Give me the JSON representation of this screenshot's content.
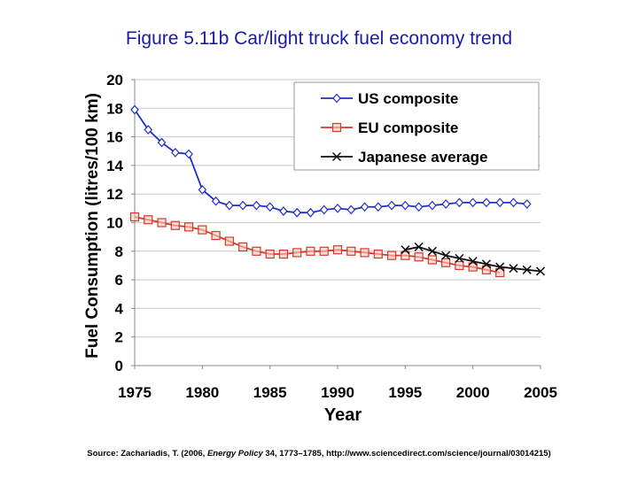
{
  "title": "Figure 5.11b Car/light truck fuel economy trend",
  "source": {
    "pre": "Source: Zachariadis, T. (2006, ",
    "journal": "Energy Policy",
    "post": " 34, 1773–1785, http://www.sciencedirect.com/science/journal/03014215)"
  },
  "colors": {
    "us": "#1f2fc8",
    "eu": "#d43a2a",
    "jp": "#111111",
    "grid": "#c8c8c8"
  },
  "chart_data": {
    "type": "line",
    "xlabel": "Year",
    "ylabel": "Fuel Consumption (litres/100 km)",
    "xlim": [
      1975,
      2005
    ],
    "ylim": [
      0,
      20
    ],
    "xticks": [
      1975,
      1980,
      1985,
      1990,
      1995,
      2000,
      2005
    ],
    "yticks": [
      0,
      2,
      4,
      6,
      8,
      10,
      12,
      14,
      16,
      18,
      20
    ],
    "grid": "horizontal",
    "legend_position": "top-right",
    "series": [
      {
        "name": "US composite",
        "marker": "diamond",
        "x": [
          1975,
          1976,
          1977,
          1978,
          1979,
          1980,
          1981,
          1982,
          1983,
          1984,
          1985,
          1986,
          1987,
          1988,
          1989,
          1990,
          1991,
          1992,
          1993,
          1994,
          1995,
          1996,
          1997,
          1998,
          1999,
          2000,
          2001,
          2002,
          2003,
          2004
        ],
        "y": [
          17.9,
          16.5,
          15.6,
          14.9,
          14.8,
          12.3,
          11.5,
          11.2,
          11.2,
          11.2,
          11.1,
          10.8,
          10.7,
          10.7,
          10.9,
          11.0,
          10.9,
          11.1,
          11.1,
          11.2,
          11.2,
          11.1,
          11.2,
          11.3,
          11.4,
          11.4,
          11.4,
          11.4,
          11.4,
          11.3
        ]
      },
      {
        "name": "EU composite",
        "marker": "square",
        "x": [
          1975,
          1976,
          1977,
          1978,
          1979,
          1980,
          1981,
          1982,
          1983,
          1984,
          1985,
          1986,
          1987,
          1988,
          1989,
          1990,
          1991,
          1992,
          1993,
          1994,
          1995,
          1996,
          1997,
          1998,
          1999,
          2000,
          2001,
          2002
        ],
        "y": [
          10.4,
          10.2,
          10.0,
          9.8,
          9.7,
          9.5,
          9.1,
          8.7,
          8.3,
          8.0,
          7.8,
          7.8,
          7.9,
          8.0,
          8.0,
          8.1,
          8.0,
          7.9,
          7.8,
          7.7,
          7.7,
          7.6,
          7.4,
          7.2,
          7.0,
          6.9,
          6.7,
          6.5
        ]
      },
      {
        "name": "Japanese average",
        "marker": "x",
        "x": [
          1995,
          1996,
          1997,
          1998,
          1999,
          2000,
          2001,
          2002,
          2003,
          2004,
          2005
        ],
        "y": [
          8.1,
          8.3,
          8.0,
          7.7,
          7.5,
          7.3,
          7.1,
          6.9,
          6.8,
          6.7,
          6.6
        ]
      }
    ]
  }
}
